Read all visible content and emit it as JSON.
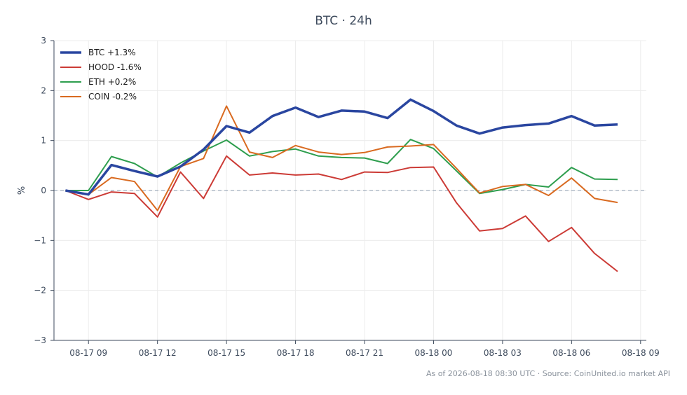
{
  "chart_data": {
    "type": "line",
    "title": "BTC · 24h",
    "xlabel": "",
    "ylabel": "%",
    "ylim": [
      -3,
      3
    ],
    "yticks": [
      3,
      2,
      1,
      0,
      -1,
      -2,
      -3
    ],
    "ytick_labels": [
      "3",
      "2",
      "1",
      "0",
      "−1",
      "−2",
      "−3"
    ],
    "xlim": [
      "2026-08-17 07:30",
      "2026-08-18 09:15"
    ],
    "xticks": [
      "2026-08-17 09:00",
      "2026-08-17 12:00",
      "2026-08-17 15:00",
      "2026-08-17 18:00",
      "2026-08-17 21:00",
      "2026-08-18 00:00",
      "2026-08-18 03:00",
      "2026-08-18 06:00",
      "2026-08-18 09:00"
    ],
    "xtick_labels": [
      "08-17 09",
      "08-17 12",
      "08-17 15",
      "08-17 18",
      "08-17 21",
      "08-18 00",
      "08-18 03",
      "08-18 06",
      "08-18 09"
    ],
    "grid": true,
    "legend_position": "top-left",
    "reference_line": 0,
    "x": [
      "2026-08-17 08:00",
      "2026-08-17 09:00",
      "2026-08-17 10:00",
      "2026-08-17 11:00",
      "2026-08-17 12:00",
      "2026-08-17 13:00",
      "2026-08-17 14:00",
      "2026-08-17 15:00",
      "2026-08-17 16:00",
      "2026-08-17 17:00",
      "2026-08-17 18:00",
      "2026-08-17 19:00",
      "2026-08-17 20:00",
      "2026-08-17 21:00",
      "2026-08-17 22:00",
      "2026-08-17 23:00",
      "2026-08-18 00:00",
      "2026-08-18 01:00",
      "2026-08-18 02:00",
      "2026-08-18 03:00",
      "2026-08-18 04:00",
      "2026-08-18 05:00",
      "2026-08-18 06:00",
      "2026-08-18 07:00",
      "2026-08-18 08:00"
    ],
    "series": [
      {
        "name": "BTC +1.3%",
        "color": "#2a46a0",
        "emphasis": true,
        "values": [
          0.0,
          -0.08,
          0.51,
          0.39,
          0.28,
          0.48,
          0.82,
          1.29,
          1.16,
          1.49,
          1.66,
          1.47,
          1.6,
          1.58,
          1.45,
          1.82,
          1.59,
          1.3,
          1.14,
          1.26,
          1.31,
          1.34,
          1.49,
          1.3,
          1.32
        ]
      },
      {
        "name": "HOOD -1.6%",
        "color": "#cc3b36",
        "values": [
          0.0,
          -0.18,
          -0.03,
          -0.06,
          -0.53,
          0.37,
          -0.16,
          0.69,
          0.31,
          0.35,
          0.31,
          0.33,
          0.22,
          0.37,
          0.36,
          0.46,
          0.47,
          -0.25,
          -0.81,
          -0.76,
          -0.51,
          -1.02,
          -0.74,
          -1.26,
          -1.62
        ]
      },
      {
        "name": "ETH +0.2%",
        "color": "#2e9e4e",
        "values": [
          0.0,
          0.0,
          0.68,
          0.54,
          0.27,
          0.55,
          0.79,
          1.01,
          0.69,
          0.78,
          0.83,
          0.69,
          0.66,
          0.65,
          0.54,
          1.02,
          0.84,
          0.39,
          -0.06,
          0.02,
          0.12,
          0.07,
          0.46,
          0.23,
          0.22
        ]
      },
      {
        "name": "COIN -0.2%",
        "color": "#d96a20",
        "values": [
          0.0,
          -0.08,
          0.26,
          0.18,
          -0.4,
          0.48,
          0.64,
          1.69,
          0.77,
          0.66,
          0.9,
          0.77,
          0.72,
          0.76,
          0.87,
          0.89,
          0.92,
          0.44,
          -0.05,
          0.08,
          0.12,
          -0.1,
          0.25,
          -0.16,
          -0.24
        ]
      }
    ],
    "footer": "As of 2026-08-18 08:30 UTC · Source: CoinUnited.io market API"
  }
}
